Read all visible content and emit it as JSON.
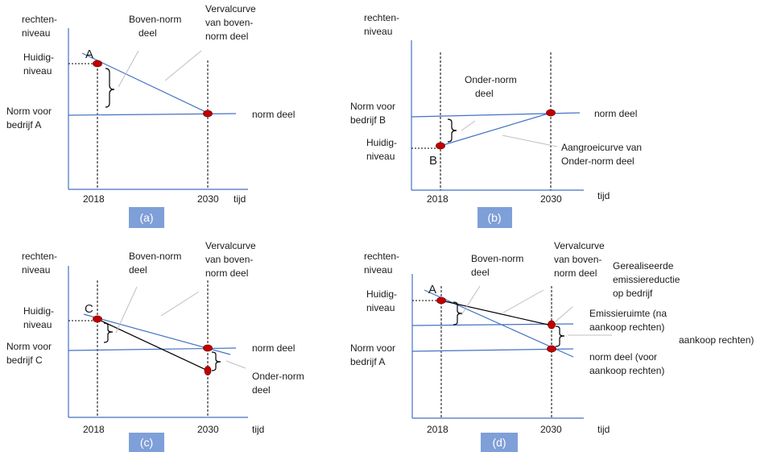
{
  "panels": {
    "a": {
      "tag": "(a)",
      "y_axis_label": [
        "rechten-",
        "niveau"
      ],
      "x_axis_label": "tijd",
      "x_ticks": [
        "2018",
        "2030"
      ],
      "current_level": [
        "Huidig-",
        "niveau"
      ],
      "norm_company": [
        "Norm voor",
        "bedrijf A"
      ],
      "point": "A",
      "above_norm": [
        "Boven-norm",
        "deel"
      ],
      "decay_curve": [
        "Vervalcurve",
        "van boven-",
        "norm deel"
      ],
      "norm_part": "norm deel"
    },
    "b": {
      "tag": "(b)",
      "y_axis_label": [
        "rechten-",
        "niveau"
      ],
      "x_axis_label": "tijd",
      "x_ticks": [
        "2018",
        "2030"
      ],
      "norm_company": [
        "Norm voor",
        "bedrijf B"
      ],
      "current_level": [
        "Huidig-",
        "niveau"
      ],
      "point": "B",
      "below_norm": [
        "Onder-norm",
        "deel"
      ],
      "norm_part": "norm deel",
      "growth_curve": [
        "Aangroeicurve van",
        "Onder-norm deel"
      ]
    },
    "c": {
      "tag": "(c)",
      "y_axis_label": [
        "rechten-",
        "niveau"
      ],
      "x_axis_label": "tijd",
      "x_ticks": [
        "2018",
        "2030"
      ],
      "current_level": [
        "Huidig-",
        "niveau"
      ],
      "norm_company": [
        "Norm voor",
        "bedrijf C"
      ],
      "point": "C",
      "above_norm": [
        "Boven-norm",
        "deel"
      ],
      "decay_curve": [
        "Vervalcurve",
        "van boven-",
        "norm deel"
      ],
      "norm_part": "norm deel",
      "below_norm": [
        "Onder-norm",
        "deel"
      ]
    },
    "d": {
      "tag": "(d)",
      "y_axis_label": [
        "rechten-",
        "niveau"
      ],
      "x_axis_label": "tijd",
      "x_ticks": [
        "2018",
        "2030"
      ],
      "current_level": [
        "Huidig-",
        "niveau"
      ],
      "norm_company": [
        "Norm voor",
        "bedrijf A"
      ],
      "point": "A",
      "above_norm": [
        "Boven-norm",
        "deel"
      ],
      "decay_curve": [
        "Vervalcurve",
        "van boven-",
        "norm deel"
      ],
      "realised_reduction": [
        "Gerealiseerde",
        "emissiereductie",
        "op bedrijf"
      ],
      "emission_space": [
        "Emissieruimte (na",
        "aankoop rechten)"
      ],
      "purchase": "aankoop rechten)",
      "norm_before": [
        "norm deel (voor",
        "aankoop rechten)"
      ]
    }
  },
  "colors": {
    "axis_blue": "#4472c4",
    "point_red": "#c00000",
    "tag_fill": "#7f9fd8",
    "pointer_grey": "#bfbfbf"
  }
}
